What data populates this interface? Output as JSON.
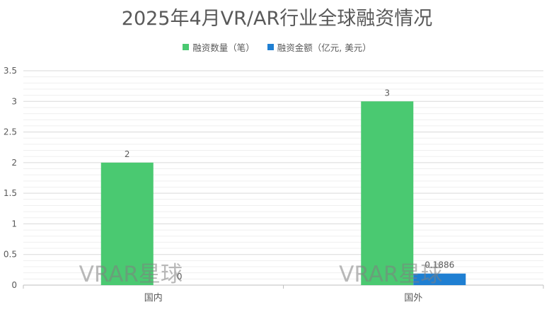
{
  "chart_data": {
    "type": "bar",
    "title": "2025年4月VR/AR行业全球融资情况",
    "categories": [
      "国内",
      "国外"
    ],
    "series": [
      {
        "name": "融资数量（笔）",
        "values": [
          2,
          3
        ],
        "color": "#4ac971",
        "labels": [
          "2",
          "3"
        ]
      },
      {
        "name": "融资金额（亿元, 美元）",
        "values": [
          0,
          0.1886
        ],
        "color": "#1f7fd2",
        "labels": [
          "0",
          "0.1886"
        ]
      }
    ],
    "ylim": [
      0,
      3.5
    ],
    "yticks": [
      "0",
      "0.5",
      "1",
      "1.5",
      "2",
      "2.5",
      "3",
      "3.5"
    ],
    "minor_gridlines": true,
    "legend_position": "top",
    "watermark": "VRAR星球",
    "colors": {
      "axis_text": "#595959",
      "grid_major": "#d9d9d9",
      "grid_minor": "#efefef",
      "watermark": "#7f7f7f"
    }
  }
}
